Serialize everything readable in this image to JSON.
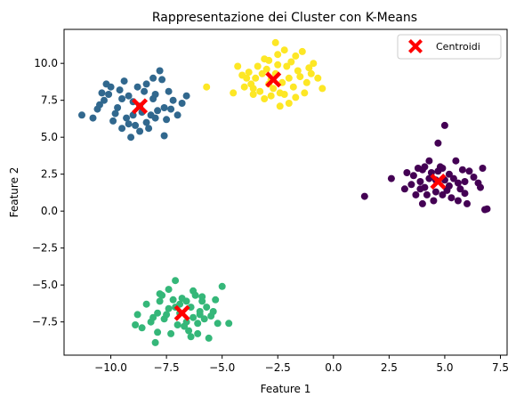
{
  "chart_data": {
    "type": "scatter",
    "title": "Rappresentazione dei Cluster con K-Means",
    "xlabel": "Feature 1",
    "ylabel": "Feature 2",
    "xlim": [
      -12.1,
      7.8
    ],
    "ylim": [
      -9.75,
      12.3
    ],
    "xticks": [
      -10.0,
      -7.5,
      -5.0,
      -2.5,
      0.0,
      2.5,
      5.0,
      7.5
    ],
    "xtick_labels": [
      "−10.0",
      "−7.5",
      "−5.0",
      "−2.5",
      "0.0",
      "2.5",
      "5.0",
      "7.5"
    ],
    "yticks": [
      -7.5,
      -5.0,
      -2.5,
      0.0,
      2.5,
      5.0,
      7.5,
      10.0
    ],
    "ytick_labels": [
      "−7.5",
      "−5.0",
      "−2.5",
      "0.0",
      "2.5",
      "5.0",
      "7.5",
      "10.0"
    ],
    "grid": false,
    "legend": {
      "position": "top-right",
      "entries": [
        "Centroidi"
      ]
    },
    "clusters": [
      {
        "color": "#440154",
        "points": [
          [
            4.6,
            2.1
          ],
          [
            3.8,
            2.9
          ],
          [
            4.1,
            1.6
          ],
          [
            5.2,
            2.5
          ],
          [
            4.9,
            1.1
          ],
          [
            3.6,
            2.4
          ],
          [
            4.3,
            3.4
          ],
          [
            5.6,
            1.9
          ],
          [
            6.1,
            2.7
          ],
          [
            4.0,
            0.5
          ],
          [
            5.3,
            0.9
          ],
          [
            4.7,
            4.6
          ],
          [
            5.0,
            5.8
          ],
          [
            1.4,
            1.0
          ],
          [
            2.6,
            2.2
          ],
          [
            3.2,
            1.5
          ],
          [
            6.8,
            0.1
          ],
          [
            6.9,
            0.15
          ],
          [
            6.5,
            1.9
          ],
          [
            6.7,
            2.9
          ],
          [
            5.9,
            1.2
          ],
          [
            3.9,
            2.0
          ],
          [
            4.4,
            2.6
          ],
          [
            5.5,
            3.4
          ],
          [
            5.7,
            1.5
          ],
          [
            4.2,
            1.1
          ],
          [
            3.5,
            1.8
          ],
          [
            4.8,
            3.0
          ],
          [
            5.1,
            1.4
          ],
          [
            6.3,
            2.3
          ],
          [
            4.5,
            0.7
          ],
          [
            5.8,
            2.8
          ],
          [
            3.7,
            1.1
          ],
          [
            4.0,
            2.8
          ],
          [
            5.4,
            2.2
          ],
          [
            4.9,
            2.9
          ],
          [
            6.0,
            0.5
          ],
          [
            3.3,
            2.6
          ],
          [
            4.6,
            1.3
          ],
          [
            5.2,
            1.7
          ],
          [
            6.6,
            1.6
          ],
          [
            4.1,
            3.0
          ],
          [
            3.9,
            1.5
          ],
          [
            5.0,
            2.1
          ],
          [
            5.9,
            2.0
          ],
          [
            4.3,
            2.2
          ],
          [
            5.6,
            0.7
          ],
          [
            4.7,
            2.7
          ]
        ]
      },
      {
        "color": "#31688e",
        "points": [
          [
            -8.7,
            7.1
          ],
          [
            -9.5,
            7.6
          ],
          [
            -8.2,
            6.5
          ],
          [
            -10.2,
            8.6
          ],
          [
            -10.0,
            8.4
          ],
          [
            -9.2,
            5.9
          ],
          [
            -8.5,
            8.1
          ],
          [
            -7.8,
            9.5
          ],
          [
            -7.7,
            8.9
          ],
          [
            -8.1,
            9.0
          ],
          [
            -11.3,
            6.5
          ],
          [
            -10.8,
            6.3
          ],
          [
            -7.5,
            6.2
          ],
          [
            -7.6,
            5.1
          ],
          [
            -9.1,
            5.0
          ],
          [
            -6.8,
            7.3
          ],
          [
            -7.2,
            7.5
          ],
          [
            -6.6,
            7.8
          ],
          [
            -10.5,
            7.2
          ],
          [
            -9.8,
            6.6
          ],
          [
            -9.0,
            7.4
          ],
          [
            -8.4,
            6.0
          ],
          [
            -9.6,
            8.2
          ],
          [
            -8.0,
            7.9
          ],
          [
            -7.9,
            6.8
          ],
          [
            -10.1,
            7.9
          ],
          [
            -8.8,
            8.4
          ],
          [
            -9.3,
            6.3
          ],
          [
            -8.3,
            5.6
          ],
          [
            -7.3,
            6.9
          ],
          [
            -9.7,
            7.0
          ],
          [
            -10.3,
            7.5
          ],
          [
            -8.6,
            6.7
          ],
          [
            -9.4,
            8.8
          ],
          [
            -7.0,
            6.5
          ],
          [
            -8.9,
            5.8
          ],
          [
            -9.9,
            6.1
          ],
          [
            -8.1,
            7.6
          ],
          [
            -7.6,
            7.0
          ],
          [
            -9.2,
            7.8
          ],
          [
            -10.6,
            6.9
          ],
          [
            -8.4,
            8.6
          ],
          [
            -9.0,
            6.5
          ],
          [
            -7.4,
            8.1
          ],
          [
            -9.5,
            5.6
          ],
          [
            -8.7,
            5.4
          ],
          [
            -10.4,
            8.0
          ],
          [
            -8.0,
            6.3
          ]
        ]
      },
      {
        "color": "#35b779",
        "points": [
          [
            -6.9,
            -6.9
          ],
          [
            -7.8,
            -5.6
          ],
          [
            -7.7,
            -5.7
          ],
          [
            -7.1,
            -4.7
          ],
          [
            -5.0,
            -5.1
          ],
          [
            -6.3,
            -5.4
          ],
          [
            -5.9,
            -6.1
          ],
          [
            -8.8,
            -7.0
          ],
          [
            -8.9,
            -7.7
          ],
          [
            -7.9,
            -8.2
          ],
          [
            -8.0,
            -8.9
          ],
          [
            -6.1,
            -8.3
          ],
          [
            -5.6,
            -8.6
          ],
          [
            -4.7,
            -7.6
          ],
          [
            -6.6,
            -6.1
          ],
          [
            -7.4,
            -6.6
          ],
          [
            -6.0,
            -7.0
          ],
          [
            -5.4,
            -6.8
          ],
          [
            -7.6,
            -7.3
          ],
          [
            -6.7,
            -7.8
          ],
          [
            -5.8,
            -7.3
          ],
          [
            -7.2,
            -6.0
          ],
          [
            -6.4,
            -6.5
          ],
          [
            -8.4,
            -6.3
          ],
          [
            -7.9,
            -6.9
          ],
          [
            -6.2,
            -5.7
          ],
          [
            -5.3,
            -6.0
          ],
          [
            -7.0,
            -7.7
          ],
          [
            -6.5,
            -8.1
          ],
          [
            -8.2,
            -7.5
          ],
          [
            -5.5,
            -7.1
          ],
          [
            -6.8,
            -5.9
          ],
          [
            -7.3,
            -8.3
          ],
          [
            -5.7,
            -6.5
          ],
          [
            -6.1,
            -7.6
          ],
          [
            -7.5,
            -7.0
          ],
          [
            -6.9,
            -6.3
          ],
          [
            -8.6,
            -7.9
          ],
          [
            -5.2,
            -7.6
          ],
          [
            -6.3,
            -7.2
          ],
          [
            -7.8,
            -6.1
          ],
          [
            -6.6,
            -7.5
          ],
          [
            -5.9,
            -5.8
          ],
          [
            -7.1,
            -6.5
          ],
          [
            -6.0,
            -6.8
          ],
          [
            -8.1,
            -7.2
          ],
          [
            -6.4,
            -8.5
          ],
          [
            -7.4,
            -5.3
          ]
        ]
      },
      {
        "color": "#fde725",
        "points": [
          [
            -2.8,
            8.9
          ],
          [
            -2.6,
            11.4
          ],
          [
            -1.7,
            10.5
          ],
          [
            -1.1,
            9.7
          ],
          [
            -0.7,
            9.0
          ],
          [
            -0.5,
            8.3
          ],
          [
            -4.3,
            9.8
          ],
          [
            -5.7,
            8.4
          ],
          [
            -4.5,
            8.0
          ],
          [
            -3.6,
            8.3
          ],
          [
            -3.1,
            7.6
          ],
          [
            -2.2,
            7.9
          ],
          [
            -2.4,
            7.1
          ],
          [
            -2.0,
            7.3
          ],
          [
            -3.9,
            9.0
          ],
          [
            -3.4,
            9.8
          ],
          [
            -2.9,
            10.2
          ],
          [
            -2.1,
            9.8
          ],
          [
            -1.5,
            9.1
          ],
          [
            -3.7,
            8.6
          ],
          [
            -3.2,
            9.3
          ],
          [
            -2.7,
            8.3
          ],
          [
            -2.3,
            8.7
          ],
          [
            -1.8,
            8.4
          ],
          [
            -1.3,
            8.0
          ],
          [
            -3.0,
            9.6
          ],
          [
            -2.5,
            10.6
          ],
          [
            -1.9,
            10.1
          ],
          [
            -3.5,
            9.0
          ],
          [
            -4.0,
            8.4
          ],
          [
            -2.6,
            9.3
          ],
          [
            -1.6,
            9.5
          ],
          [
            -2.2,
            10.9
          ],
          [
            -3.3,
            8.1
          ],
          [
            -1.2,
            8.7
          ],
          [
            -0.9,
            10.0
          ],
          [
            -2.8,
            7.8
          ],
          [
            -3.8,
            9.4
          ],
          [
            -2.0,
            9.0
          ],
          [
            -3.1,
            10.3
          ],
          [
            -1.4,
            10.8
          ],
          [
            -4.1,
            9.2
          ],
          [
            -2.4,
            8.0
          ],
          [
            -3.6,
            7.9
          ],
          [
            -1.0,
            9.3
          ],
          [
            -2.9,
            8.6
          ],
          [
            -1.7,
            7.7
          ],
          [
            -2.5,
            9.9
          ]
        ]
      }
    ],
    "centroids": {
      "name": "Centroidi",
      "color": "#ff0000",
      "marker": "X",
      "points": [
        [
          4.7,
          2.0
        ],
        [
          -8.7,
          7.1
        ],
        [
          -6.8,
          -6.9
        ],
        [
          -2.7,
          8.9
        ]
      ]
    }
  }
}
